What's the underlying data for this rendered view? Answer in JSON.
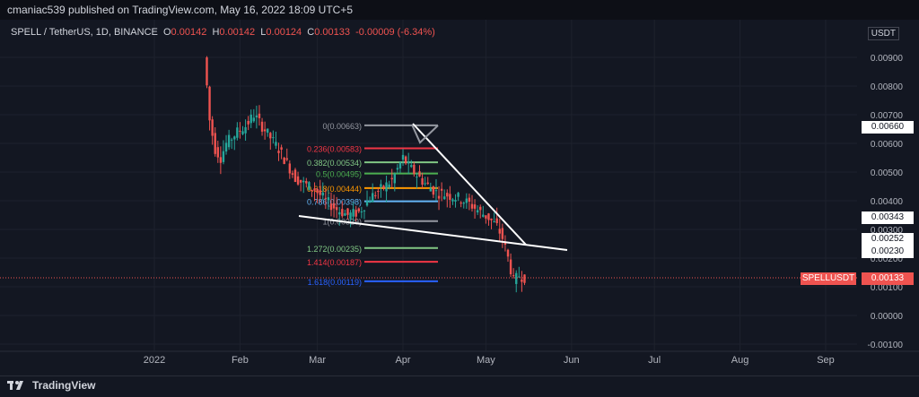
{
  "header": {
    "publisher": "cmaniac539 published on TradingView.com, May 16, 2022 18:09 UTC+5"
  },
  "legend": {
    "symbol": "SPELL / TetherUS, 1D, BINANCE",
    "o_label": "O",
    "o": "0.00142",
    "h_label": "H",
    "h": "0.00142",
    "l_label": "L",
    "l": "0.00124",
    "c_label": "C",
    "c": "0.00133",
    "change": "-0.00009 (-6.34%)"
  },
  "axis": {
    "currency": "USDT",
    "y_ticks": [
      "0.00900",
      "0.00800",
      "0.00700",
      "0.00600",
      "0.00500",
      "0.00400",
      "0.00300",
      "0.00200",
      "0.00100",
      "0.00000",
      "-0.00100"
    ],
    "x_ticks": [
      "2022",
      "Feb",
      "Mar",
      "Apr",
      "May",
      "Jun",
      "Jul",
      "Aug",
      "Sep"
    ]
  },
  "badges": {
    "b1": "0.00660",
    "b2": "0.00343",
    "b3": "0.00252",
    "b4": "0.00230",
    "symbol_tag": "SPELLUSDT",
    "last": "0.00133"
  },
  "fib": [
    {
      "label": "0(0.00663)",
      "level": 0.00663,
      "color": "#9598a1"
    },
    {
      "label": "0.236(0.00583)",
      "level": 0.00583,
      "color": "#f23645"
    },
    {
      "label": "0.382(0.00534)",
      "level": 0.00534,
      "color": "#81c784"
    },
    {
      "label": "0.5(0.00495)",
      "level": 0.00495,
      "color": "#4caf50"
    },
    {
      "label": "0.618(0.00444)",
      "level": 0.00444,
      "color": "#ff9800"
    },
    {
      "label": "0.786(0.00398)",
      "level": 0.00398,
      "color": "#64b5f6"
    },
    {
      "label": "1(0.00329)",
      "level": 0.00329,
      "color": "#9598a1"
    },
    {
      "label": "1.272(0.00235)",
      "level": 0.00235,
      "color": "#81c784"
    },
    {
      "label": "1.414(0.00187)",
      "level": 0.00187,
      "color": "#f23645"
    },
    {
      "label": "1.618(0.00119)",
      "level": 0.00119,
      "color": "#2962ff"
    }
  ],
  "footer": {
    "brand": "TradingView"
  },
  "colors": {
    "up": "#26a69a",
    "down": "#ef5350",
    "bg": "#131722"
  },
  "chart_data": {
    "type": "candlestick",
    "title": "SPELL / TetherUS, 1D, BINANCE",
    "ylim": [
      -0.001,
      0.01
    ],
    "xlim": [
      "2021-12-21",
      "2022-09-15"
    ],
    "series": [
      {
        "values": [
          {
            "x": "2022-01-20",
            "y": 0.009
          },
          {
            "x": "2022-01-21",
            "y": 0.008
          },
          {
            "x": "2022-01-22",
            "y": 0.0068
          },
          {
            "x": "2022-01-24",
            "y": 0.0058
          },
          {
            "x": "2022-01-26",
            "y": 0.0055
          },
          {
            "x": "2022-01-28",
            "y": 0.006
          },
          {
            "x": "2022-02-01",
            "y": 0.0064
          },
          {
            "x": "2022-02-04",
            "y": 0.0066
          },
          {
            "x": "2022-02-07",
            "y": 0.007
          },
          {
            "x": "2022-02-10",
            "y": 0.0066
          },
          {
            "x": "2022-02-13",
            "y": 0.0062
          },
          {
            "x": "2022-02-16",
            "y": 0.0058
          },
          {
            "x": "2022-02-19",
            "y": 0.0053
          },
          {
            "x": "2022-02-22",
            "y": 0.0048
          },
          {
            "x": "2022-02-25",
            "y": 0.0046
          },
          {
            "x": "2022-03-01",
            "y": 0.0044
          },
          {
            "x": "2022-03-05",
            "y": 0.004
          },
          {
            "x": "2022-03-09",
            "y": 0.0037
          },
          {
            "x": "2022-03-13",
            "y": 0.0035
          },
          {
            "x": "2022-03-17",
            "y": 0.0036
          },
          {
            "x": "2022-03-21",
            "y": 0.0041
          },
          {
            "x": "2022-03-25",
            "y": 0.0044
          },
          {
            "x": "2022-03-29",
            "y": 0.0047
          },
          {
            "x": "2022-04-02",
            "y": 0.0055
          },
          {
            "x": "2022-04-04",
            "y": 0.0052
          },
          {
            "x": "2022-04-07",
            "y": 0.0049
          },
          {
            "x": "2022-04-10",
            "y": 0.0046
          },
          {
            "x": "2022-04-14",
            "y": 0.0043
          },
          {
            "x": "2022-04-18",
            "y": 0.0042
          },
          {
            "x": "2022-04-22",
            "y": 0.0041
          },
          {
            "x": "2022-04-26",
            "y": 0.0039
          },
          {
            "x": "2022-04-30",
            "y": 0.0036
          },
          {
            "x": "2022-05-03",
            "y": 0.0034
          },
          {
            "x": "2022-05-06",
            "y": 0.0031
          },
          {
            "x": "2022-05-08",
            "y": 0.0027
          },
          {
            "x": "2022-05-10",
            "y": 0.002
          },
          {
            "x": "2022-05-12",
            "y": 0.0012
          },
          {
            "x": "2022-05-14",
            "y": 0.0014
          },
          {
            "x": "2022-05-16",
            "y": 0.00133
          }
        ]
      }
    ],
    "last_price": 0.00133
  }
}
